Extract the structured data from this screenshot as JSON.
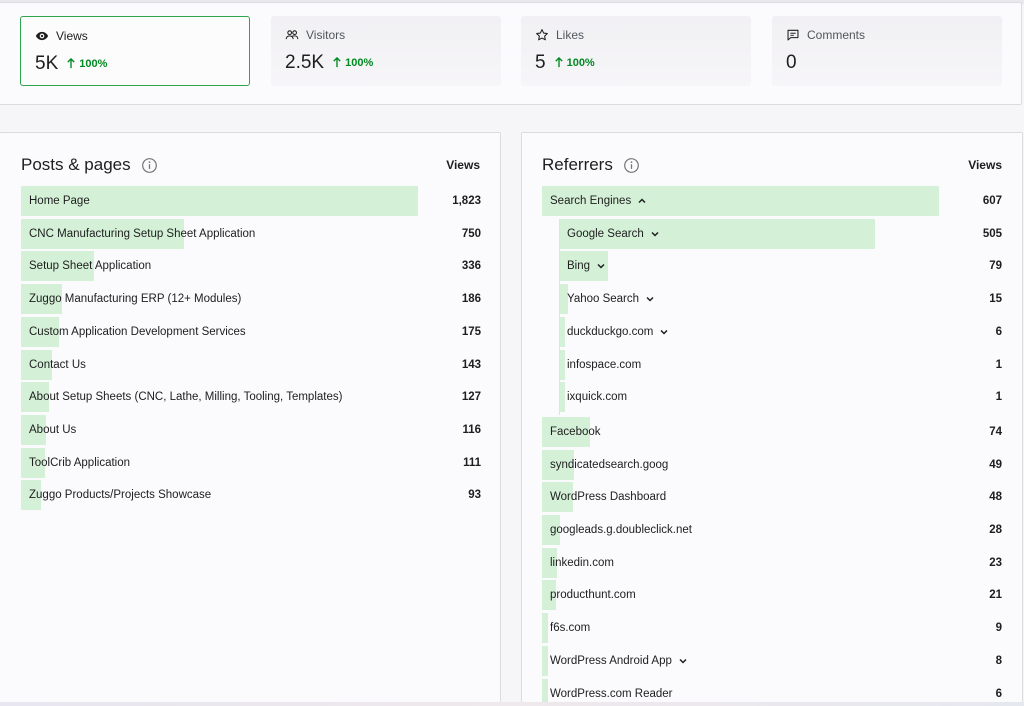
{
  "stats": {
    "views": {
      "label": "Views",
      "value": "5K",
      "delta": "100%",
      "icon": "eye-icon"
    },
    "visitors": {
      "label": "Visitors",
      "value": "2.5K",
      "delta": "100%",
      "icon": "people-icon"
    },
    "likes": {
      "label": "Likes",
      "value": "5",
      "delta": "100%",
      "icon": "star-icon"
    },
    "comments": {
      "label": "Comments",
      "value": "0",
      "icon": "comment-icon"
    }
  },
  "posts": {
    "title": "Posts & pages",
    "column_header": "Views",
    "max": 1823,
    "rows": [
      {
        "label": "Home Page",
        "value": "1,823",
        "num": 1823
      },
      {
        "label": "CNC Manufacturing Setup Sheet Application",
        "value": "750",
        "num": 750
      },
      {
        "label": "Setup Sheet Application",
        "value": "336",
        "num": 336
      },
      {
        "label": "Zuggo Manufacturing ERP (12+ Modules)",
        "value": "186",
        "num": 186
      },
      {
        "label": "Custom Application Development Services",
        "value": "175",
        "num": 175
      },
      {
        "label": "Contact Us",
        "value": "143",
        "num": 143
      },
      {
        "label": "About Setup Sheets (CNC, Lathe, Milling, Tooling, Templates)",
        "value": "127",
        "num": 127
      },
      {
        "label": "About Us",
        "value": "116",
        "num": 116
      },
      {
        "label": "ToolCrib Application",
        "value": "111",
        "num": 111
      },
      {
        "label": "Zuggo Products/Projects Showcase",
        "value": "93",
        "num": 93
      }
    ]
  },
  "referrers": {
    "title": "Referrers",
    "column_header": "Views",
    "max": 607,
    "rows": [
      {
        "label": "Search Engines",
        "value": "607",
        "num": 607,
        "level": 0,
        "chevron": "up"
      },
      {
        "label": "Google Search",
        "value": "505",
        "num": 505,
        "level": 1,
        "chevron": "down"
      },
      {
        "label": "Bing",
        "value": "79",
        "num": 79,
        "level": 1,
        "chevron": "down"
      },
      {
        "label": "Yahoo Search",
        "value": "15",
        "num": 15,
        "level": 1,
        "chevron": "down"
      },
      {
        "label": "duckduckgo.com",
        "value": "6",
        "num": 6,
        "level": 1,
        "chevron": "down"
      },
      {
        "label": "infospace.com",
        "value": "1",
        "num": 1,
        "level": 1,
        "chevron": ""
      },
      {
        "label": "ixquick.com",
        "value": "1",
        "num": 1,
        "level": 1,
        "chevron": ""
      },
      {
        "label": "Facebook",
        "value": "74",
        "num": 74,
        "level": 0,
        "chevron": ""
      },
      {
        "label": "syndicatedsearch.goog",
        "value": "49",
        "num": 49,
        "level": 0,
        "chevron": ""
      },
      {
        "label": "WordPress Dashboard",
        "value": "48",
        "num": 48,
        "level": 0,
        "chevron": ""
      },
      {
        "label": "googleads.g.doubleclick.net",
        "value": "28",
        "num": 28,
        "level": 0,
        "chevron": ""
      },
      {
        "label": "linkedin.com",
        "value": "23",
        "num": 23,
        "level": 0,
        "chevron": ""
      },
      {
        "label": "producthunt.com",
        "value": "21",
        "num": 21,
        "level": 0,
        "chevron": ""
      },
      {
        "label": "f6s.com",
        "value": "9",
        "num": 9,
        "level": 0,
        "chevron": ""
      },
      {
        "label": "WordPress Android App",
        "value": "8",
        "num": 8,
        "level": 0,
        "chevron": "down"
      },
      {
        "label": "WordPress.com Reader",
        "value": "6",
        "num": 6,
        "level": 0,
        "chevron": ""
      }
    ]
  }
}
